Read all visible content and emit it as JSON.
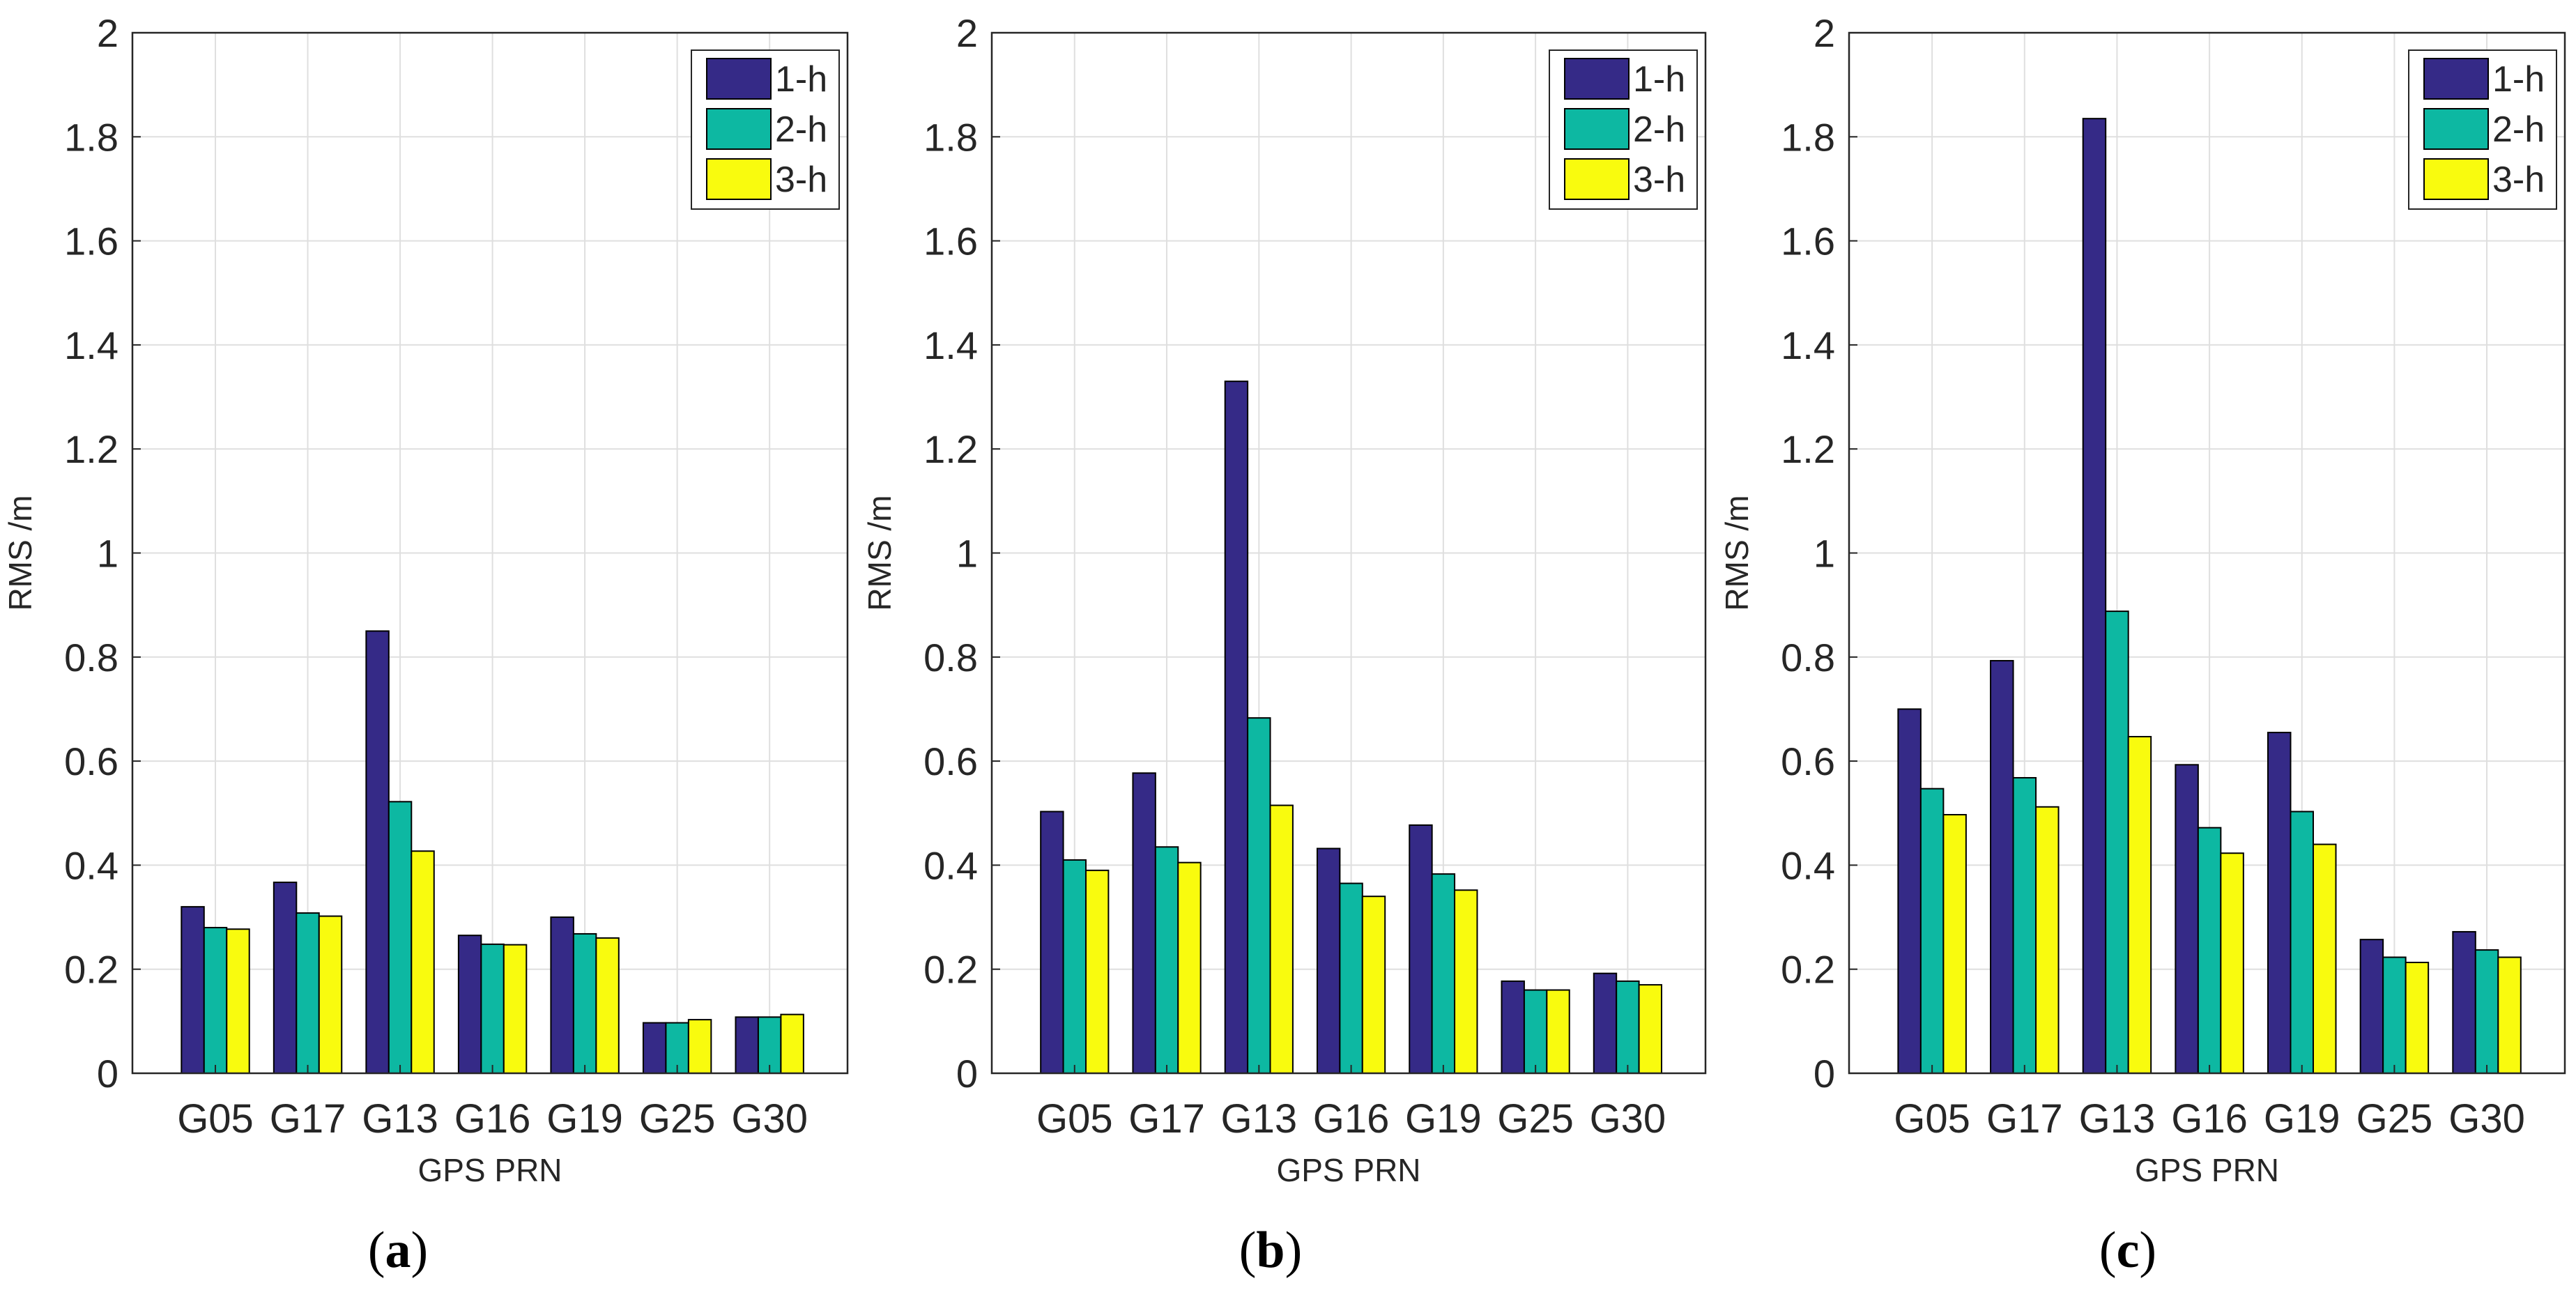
{
  "colors": {
    "series": [
      "#352a87",
      "#0db8a2",
      "#f9fb0e"
    ],
    "grid": "#dfdfdf",
    "axis": "#262626"
  },
  "panels": [
    {
      "letter": "a",
      "open": "(",
      "close": ")"
    },
    {
      "letter": "b",
      "open": "(",
      "close": ")"
    },
    {
      "letter": "c",
      "open": "(",
      "close": ")"
    }
  ],
  "chart_data": [
    {
      "type": "bar",
      "title": "",
      "xlabel": "GPS PRN",
      "ylabel": "RMS /m",
      "ylim": [
        0,
        2
      ],
      "yticks": [
        "0",
        "0.2",
        "0.4",
        "0.6",
        "0.8",
        "1",
        "1.2",
        "1.4",
        "1.6",
        "1.8",
        "2"
      ],
      "grid": true,
      "legend": "top-right",
      "categories": [
        "G05",
        "G17",
        "G13",
        "G16",
        "G19",
        "G25",
        "G30"
      ],
      "series": [
        {
          "name": "1-h",
          "values": [
            0.32,
            0.367,
            0.85,
            0.265,
            0.3,
            0.097,
            0.108
          ]
        },
        {
          "name": "2-h",
          "values": [
            0.28,
            0.308,
            0.522,
            0.248,
            0.268,
            0.097,
            0.108
          ]
        },
        {
          "name": "3-h",
          "values": [
            0.277,
            0.302,
            0.427,
            0.247,
            0.26,
            0.103,
            0.113
          ]
        }
      ]
    },
    {
      "type": "bar",
      "title": "",
      "xlabel": "GPS PRN",
      "ylabel": "RMS /m",
      "ylim": [
        0,
        2
      ],
      "yticks": [
        "0",
        "0.2",
        "0.4",
        "0.6",
        "0.8",
        "1",
        "1.2",
        "1.4",
        "1.6",
        "1.8",
        "2"
      ],
      "grid": true,
      "legend": "top-right",
      "categories": [
        "G05",
        "G17",
        "G13",
        "G16",
        "G19",
        "G25",
        "G30"
      ],
      "series": [
        {
          "name": "1-h",
          "values": [
            0.503,
            0.577,
            1.33,
            0.432,
            0.477,
            0.177,
            0.192
          ]
        },
        {
          "name": "2-h",
          "values": [
            0.41,
            0.435,
            0.683,
            0.365,
            0.383,
            0.16,
            0.177
          ]
        },
        {
          "name": "3-h",
          "values": [
            0.39,
            0.405,
            0.515,
            0.34,
            0.352,
            0.16,
            0.17
          ]
        }
      ]
    },
    {
      "type": "bar",
      "title": "",
      "xlabel": "GPS PRN",
      "ylabel": "RMS /m",
      "ylim": [
        0,
        2
      ],
      "yticks": [
        "0",
        "0.2",
        "0.4",
        "0.6",
        "0.8",
        "1",
        "1.2",
        "1.4",
        "1.6",
        "1.8",
        "2"
      ],
      "grid": true,
      "legend": "top-right",
      "categories": [
        "G05",
        "G17",
        "G13",
        "G16",
        "G19",
        "G25",
        "G30"
      ],
      "series": [
        {
          "name": "1-h",
          "values": [
            0.7,
            0.793,
            1.835,
            0.593,
            0.655,
            0.257,
            0.272
          ]
        },
        {
          "name": "2-h",
          "values": [
            0.547,
            0.568,
            0.888,
            0.472,
            0.503,
            0.223,
            0.237
          ]
        },
        {
          "name": "3-h",
          "values": [
            0.497,
            0.512,
            0.647,
            0.423,
            0.44,
            0.213,
            0.223
          ]
        }
      ]
    }
  ]
}
